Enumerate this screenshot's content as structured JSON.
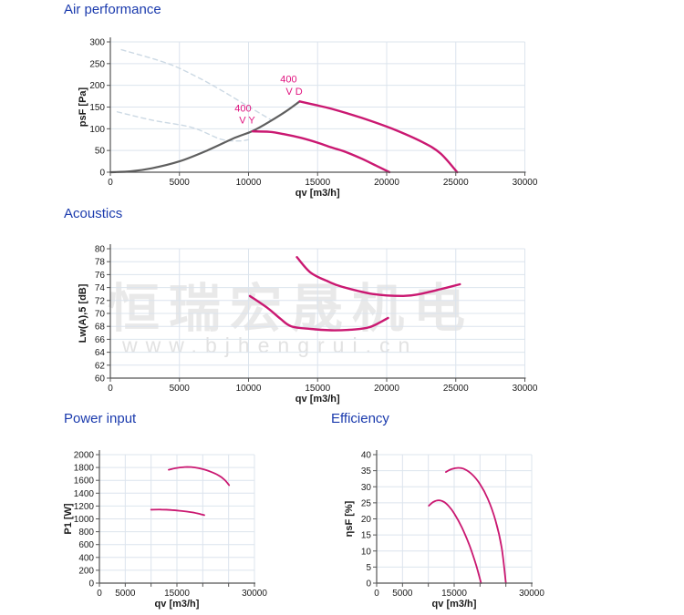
{
  "watermark": {
    "cjk": "恒瑞宏晟机电",
    "url": "www.bjhengrui.cn"
  },
  "colors": {
    "title_blue": "#1a3aad",
    "magenta": "#ca1871",
    "curve_label": "#e01580",
    "gray": "#5f5f5f",
    "dashedblue": "#ccd9e4",
    "grid": "#dce4ed",
    "axis": "#555555",
    "text": "#1a1a1a",
    "watermark_gray": "#e9e9e9"
  },
  "chart_data": [
    {
      "id": "air",
      "type": "line",
      "title": "Air performance",
      "xlabel": "qv [m3/h]",
      "ylabel": "psF [Pa]",
      "xlim": [
        0,
        30000
      ],
      "ylim": [
        0,
        300
      ],
      "x_ticks": [
        {
          "v": 0,
          "label": "0"
        },
        {
          "v": 5000,
          "label": "5000"
        },
        {
          "v": 10000,
          "label": "10000"
        },
        {
          "v": 15000,
          "label": "15000"
        },
        {
          "v": 20000,
          "label": "20000"
        },
        {
          "v": 25000,
          "label": "25000"
        },
        {
          "v": 30000,
          "label": "30000"
        }
      ],
      "y_ticks": [
        {
          "v": 0,
          "label": "0"
        },
        {
          "v": 50,
          "label": "50"
        },
        {
          "v": 100,
          "label": "100"
        },
        {
          "v": 150,
          "label": "150"
        },
        {
          "v": 200,
          "label": "200"
        },
        {
          "v": 250,
          "label": "250"
        },
        {
          "v": 300,
          "label": "300"
        }
      ],
      "series": [
        {
          "name": "unstable-region-400-v-d",
          "style": "dashed",
          "color_key": "dashedblue",
          "width": 1.4,
          "points": [
            [
              800,
              282
            ],
            [
              4100,
              251
            ],
            [
              6300,
              219
            ],
            [
              7900,
              191
            ],
            [
              9800,
              155
            ],
            [
              11600,
              121
            ]
          ]
        },
        {
          "name": "unstable-region-400-v-y",
          "style": "dashed",
          "color_key": "dashedblue",
          "width": 1.4,
          "points": [
            [
              500,
              139
            ],
            [
              3000,
              120
            ],
            [
              5900,
              103
            ],
            [
              8000,
              76
            ],
            [
              9300,
              72
            ],
            [
              10000,
              75
            ]
          ]
        },
        {
          "name": "system-resistance",
          "style": "solid",
          "color_key": "gray",
          "width": 2.2,
          "points": [
            [
              0,
              0
            ],
            [
              1500,
              2
            ],
            [
              3000,
              9
            ],
            [
              5000,
              25
            ],
            [
              7000,
              50
            ],
            [
              9000,
              79
            ],
            [
              10300,
              95
            ],
            [
              11500,
              116
            ],
            [
              12700,
              140
            ],
            [
              13700,
              163
            ]
          ]
        },
        {
          "name": "400-v-d",
          "style": "solid",
          "color_key": "magenta",
          "width": 2.4,
          "points": [
            [
              13700,
              163
            ],
            [
              14800,
              155
            ],
            [
              16000,
              146
            ],
            [
              18200,
              125
            ],
            [
              20400,
              100
            ],
            [
              22600,
              69
            ],
            [
              23900,
              43
            ],
            [
              25100,
              0
            ]
          ]
        },
        {
          "name": "400-v-y",
          "style": "solid",
          "color_key": "magenta",
          "width": 2.4,
          "points": [
            [
              10300,
              94
            ],
            [
              11500,
              93
            ],
            [
              12500,
              88
            ],
            [
              13800,
              79
            ],
            [
              15000,
              68
            ],
            [
              16000,
              57
            ],
            [
              17000,
              47
            ],
            [
              18200,
              31
            ],
            [
              19300,
              14
            ],
            [
              20200,
              0
            ]
          ]
        }
      ],
      "annotations": [
        {
          "text": "400",
          "x": 12900,
          "y": 207
        },
        {
          "text": "V D",
          "x": 13300,
          "y": 178
        },
        {
          "text": "400",
          "x": 9600,
          "y": 140
        },
        {
          "text": "V Y",
          "x": 9900,
          "y": 112
        }
      ]
    },
    {
      "id": "acoustics",
      "type": "line",
      "title": "Acoustics",
      "xlabel": "qv [m3/h]",
      "ylabel": "Lw(A),5 [dB]",
      "xlim": [
        0,
        30000
      ],
      "ylim": [
        60,
        80
      ],
      "x_ticks": [
        {
          "v": 0,
          "label": "0"
        },
        {
          "v": 5000,
          "label": "5000"
        },
        {
          "v": 10000,
          "label": "10000"
        },
        {
          "v": 15000,
          "label": "15000"
        },
        {
          "v": 20000,
          "label": "20000"
        },
        {
          "v": 25000,
          "label": "25000"
        },
        {
          "v": 30000,
          "label": "30000"
        }
      ],
      "y_ticks": [
        {
          "v": 60,
          "label": "60"
        },
        {
          "v": 62,
          "label": "62"
        },
        {
          "v": 64,
          "label": "64"
        },
        {
          "v": 66,
          "label": "66"
        },
        {
          "v": 68,
          "label": "68"
        },
        {
          "v": 70,
          "label": "70"
        },
        {
          "v": 72,
          "label": "72"
        },
        {
          "v": 74,
          "label": "74"
        },
        {
          "v": 76,
          "label": "76"
        },
        {
          "v": 78,
          "label": "78"
        },
        {
          "v": 80,
          "label": "80"
        }
      ],
      "series": [
        {
          "name": "noise-400-v-d",
          "style": "solid",
          "color_key": "magenta",
          "width": 2.4,
          "points": [
            [
              13500,
              78.7
            ],
            [
              14500,
              76.3
            ],
            [
              15800,
              74.9
            ],
            [
              16800,
              74.1
            ],
            [
              19000,
              73.0
            ],
            [
              21200,
              72.7
            ],
            [
              22400,
              73.0
            ],
            [
              24000,
              73.8
            ],
            [
              25300,
              74.5
            ]
          ]
        },
        {
          "name": "noise-400-v-y",
          "style": "solid",
          "color_key": "magenta",
          "width": 2.4,
          "points": [
            [
              10100,
              72.7
            ],
            [
              11400,
              70.8
            ],
            [
              12300,
              69.2
            ],
            [
              13100,
              68.0
            ],
            [
              14500,
              67.6
            ],
            [
              16000,
              67.4
            ],
            [
              17500,
              67.5
            ],
            [
              18800,
              67.9
            ],
            [
              20100,
              69.3
            ]
          ]
        }
      ],
      "annotations": []
    },
    {
      "id": "power",
      "type": "line",
      "title": "Power input",
      "xlabel": "qv [m3/h]",
      "ylabel": "P1 [W]",
      "xlim": [
        0,
        30000
      ],
      "ylim": [
        0,
        2000
      ],
      "x_ticks": [
        {
          "v": 0,
          "label": "0"
        },
        {
          "v": 5000,
          "label": "5000"
        },
        {
          "v": 10000,
          "label": null
        },
        {
          "v": 15000,
          "label": "15000"
        },
        {
          "v": 20000,
          "label": null
        },
        {
          "v": 25000,
          "label": null
        },
        {
          "v": 30000,
          "label": "30000"
        }
      ],
      "y_ticks": [
        {
          "v": 0,
          "label": "0"
        },
        {
          "v": 200,
          "label": "200"
        },
        {
          "v": 400,
          "label": "400"
        },
        {
          "v": 600,
          "label": "600"
        },
        {
          "v": 800,
          "label": "800"
        },
        {
          "v": 1000,
          "label": "1000"
        },
        {
          "v": 1200,
          "label": "1200"
        },
        {
          "v": 1400,
          "label": "1400"
        },
        {
          "v": 1600,
          "label": "1600"
        },
        {
          "v": 1800,
          "label": "1800"
        },
        {
          "v": 2000,
          "label": "2000"
        }
      ],
      "series": [
        {
          "name": "power-400-v-d",
          "style": "solid",
          "color_key": "magenta",
          "width": 1.8,
          "points": [
            [
              13400,
              1765
            ],
            [
              15000,
              1793
            ],
            [
              17000,
              1808
            ],
            [
              18500,
              1800
            ],
            [
              20000,
              1775
            ],
            [
              21500,
              1735
            ],
            [
              23000,
              1680
            ],
            [
              24200,
              1610
            ],
            [
              25100,
              1525
            ]
          ]
        },
        {
          "name": "power-400-v-y",
          "style": "solid",
          "color_key": "magenta",
          "width": 1.8,
          "points": [
            [
              10000,
              1143
            ],
            [
              12000,
              1145
            ],
            [
              14000,
              1138
            ],
            [
              16000,
              1122
            ],
            [
              18000,
              1100
            ],
            [
              19500,
              1075
            ],
            [
              20300,
              1058
            ]
          ]
        }
      ],
      "annotations": []
    },
    {
      "id": "efficiency",
      "type": "line",
      "title": "Efficiency",
      "xlabel": "qv [m3/h]",
      "ylabel": "ηsF [%]",
      "xlim": [
        0,
        30000
      ],
      "ylim": [
        0,
        40
      ],
      "x_ticks": [
        {
          "v": 0,
          "label": "0"
        },
        {
          "v": 5000,
          "label": "5000"
        },
        {
          "v": 10000,
          "label": null
        },
        {
          "v": 15000,
          "label": "15000"
        },
        {
          "v": 20000,
          "label": null
        },
        {
          "v": 25000,
          "label": null
        },
        {
          "v": 30000,
          "label": "30000"
        }
      ],
      "y_ticks": [
        {
          "v": 0,
          "label": "0"
        },
        {
          "v": 5,
          "label": "5"
        },
        {
          "v": 10,
          "label": "10"
        },
        {
          "v": 15,
          "label": "15"
        },
        {
          "v": 20,
          "label": "20"
        },
        {
          "v": 25,
          "label": "25"
        },
        {
          "v": 30,
          "label": "30"
        },
        {
          "v": 35,
          "label": "35"
        },
        {
          "v": 40,
          "label": "40"
        }
      ],
      "series": [
        {
          "name": "efficiency-400-v-d",
          "style": "solid",
          "color_key": "magenta",
          "width": 1.8,
          "points": [
            [
              13400,
              34.6
            ],
            [
              14500,
              35.5
            ],
            [
              15800,
              35.9
            ],
            [
              17000,
              35.5
            ],
            [
              18500,
              33.8
            ],
            [
              20000,
              30.8
            ],
            [
              21500,
              26.3
            ],
            [
              23000,
              19.5
            ],
            [
              24200,
              11
            ],
            [
              25000,
              0
            ]
          ]
        },
        {
          "name": "efficiency-400-v-y",
          "style": "solid",
          "color_key": "magenta",
          "width": 1.8,
          "points": [
            [
              10100,
              24.1
            ],
            [
              11000,
              25.3
            ],
            [
              12000,
              25.8
            ],
            [
              13000,
              25.3
            ],
            [
              14000,
              23.9
            ],
            [
              15000,
              21.7
            ],
            [
              16500,
              17.3
            ],
            [
              18000,
              11.6
            ],
            [
              19300,
              5.3
            ],
            [
              20200,
              0
            ]
          ]
        }
      ],
      "annotations": []
    }
  ]
}
